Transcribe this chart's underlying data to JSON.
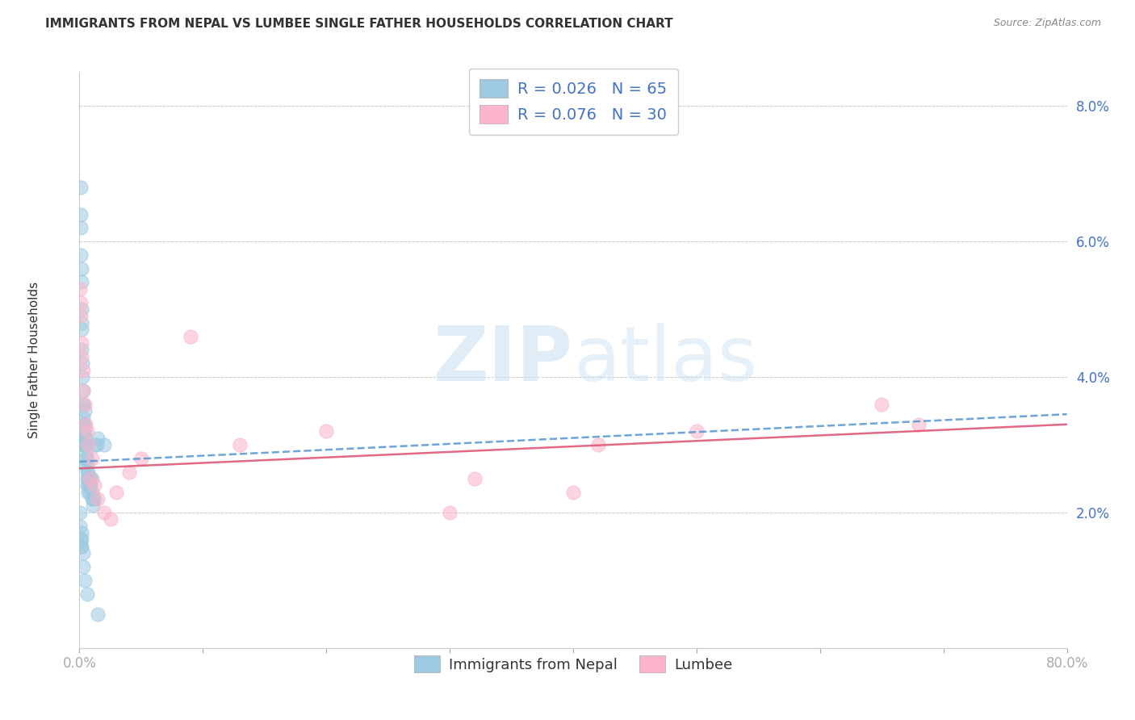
{
  "title": "IMMIGRANTS FROM NEPAL VS LUMBEE SINGLE FATHER HOUSEHOLDS CORRELATION CHART",
  "source": "Source: ZipAtlas.com",
  "ylabel": "Single Father Households",
  "xlim": [
    0.0,
    0.8
  ],
  "ylim": [
    0.0,
    0.085
  ],
  "yticks": [
    0.0,
    0.02,
    0.04,
    0.06,
    0.08
  ],
  "ytick_labels": [
    "",
    "2.0%",
    "4.0%",
    "6.0%",
    "8.0%"
  ],
  "xticks": [
    0.0,
    0.1,
    0.2,
    0.3,
    0.4,
    0.5,
    0.6,
    0.7,
    0.8
  ],
  "xtick_labels": [
    "0.0%",
    "",
    "",
    "",
    "",
    "",
    "",
    "",
    "80.0%"
  ],
  "legend_label1": "R = 0.026   N = 65",
  "legend_label2": "R = 0.076   N = 30",
  "blue_color": "#9ecae1",
  "pink_color": "#fbb4c9",
  "line_blue": "#5b9bd5",
  "line_pink": "#e05878",
  "watermark_zip": "ZIP",
  "watermark_atlas": "atlas",
  "nepal_x": [
    0.0005,
    0.001,
    0.001,
    0.001,
    0.001,
    0.0015,
    0.0015,
    0.002,
    0.002,
    0.002,
    0.002,
    0.0025,
    0.0025,
    0.003,
    0.003,
    0.003,
    0.003,
    0.003,
    0.003,
    0.004,
    0.004,
    0.004,
    0.004,
    0.004,
    0.005,
    0.005,
    0.005,
    0.005,
    0.005,
    0.006,
    0.006,
    0.006,
    0.006,
    0.006,
    0.007,
    0.007,
    0.007,
    0.007,
    0.008,
    0.008,
    0.008,
    0.009,
    0.009,
    0.01,
    0.01,
    0.01,
    0.011,
    0.011,
    0.012,
    0.013,
    0.014,
    0.015,
    0.0005,
    0.0005,
    0.001,
    0.001,
    0.0015,
    0.002,
    0.002,
    0.003,
    0.003,
    0.004,
    0.006,
    0.015,
    0.02
  ],
  "nepal_y": [
    0.03,
    0.068,
    0.064,
    0.062,
    0.058,
    0.056,
    0.054,
    0.05,
    0.048,
    0.047,
    0.044,
    0.042,
    0.04,
    0.038,
    0.036,
    0.036,
    0.034,
    0.033,
    0.032,
    0.035,
    0.033,
    0.032,
    0.031,
    0.03,
    0.031,
    0.03,
    0.029,
    0.028,
    0.027,
    0.028,
    0.027,
    0.026,
    0.025,
    0.024,
    0.026,
    0.025,
    0.024,
    0.023,
    0.025,
    0.024,
    0.023,
    0.025,
    0.024,
    0.025,
    0.023,
    0.022,
    0.022,
    0.021,
    0.022,
    0.03,
    0.03,
    0.031,
    0.02,
    0.018,
    0.016,
    0.015,
    0.017,
    0.016,
    0.015,
    0.014,
    0.012,
    0.01,
    0.008,
    0.005,
    0.03
  ],
  "lumbee_x": [
    0.0005,
    0.001,
    0.001,
    0.0015,
    0.002,
    0.003,
    0.003,
    0.004,
    0.005,
    0.006,
    0.007,
    0.008,
    0.01,
    0.012,
    0.015,
    0.02,
    0.025,
    0.03,
    0.04,
    0.05,
    0.09,
    0.13,
    0.2,
    0.3,
    0.4,
    0.5,
    0.65,
    0.68,
    0.32,
    0.42
  ],
  "lumbee_y": [
    0.053,
    0.051,
    0.049,
    0.045,
    0.043,
    0.041,
    0.038,
    0.036,
    0.033,
    0.032,
    0.03,
    0.025,
    0.028,
    0.024,
    0.022,
    0.02,
    0.019,
    0.023,
    0.026,
    0.028,
    0.046,
    0.03,
    0.032,
    0.02,
    0.023,
    0.032,
    0.036,
    0.033,
    0.025,
    0.03
  ],
  "blue_line_x0": 0.0,
  "blue_line_y0": 0.0275,
  "blue_line_x1": 0.8,
  "blue_line_y1": 0.0345,
  "pink_line_x0": 0.0,
  "pink_line_y0": 0.0265,
  "pink_line_x1": 0.8,
  "pink_line_y1": 0.033
}
